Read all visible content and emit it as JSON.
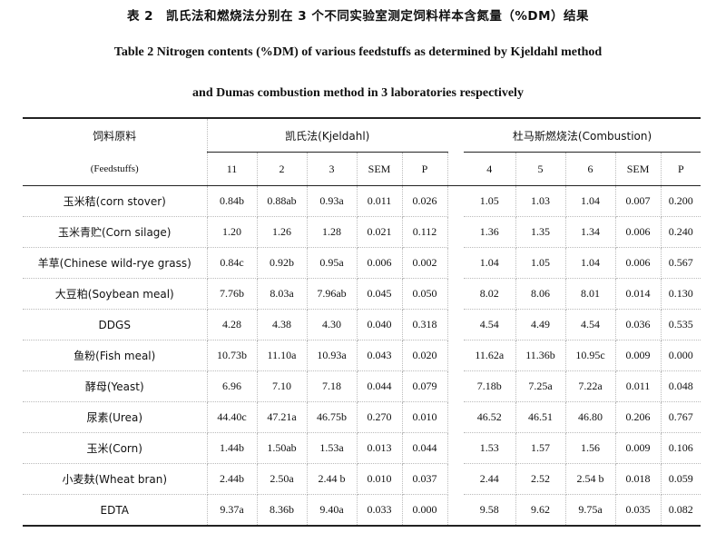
{
  "title_cn": "表 2　凯氏法和燃烧法分别在 3 个不同实验室测定饲料样本含氮量（%DM）结果",
  "title_en_line1": "Table 2 Nitrogen contents (%DM) of various feedstuffs as determined by Kjeldahl method",
  "title_en_line2": "and Dumas combustion method in 3 laboratories respectively",
  "header": {
    "feed_cn": "饲料原料",
    "feed_en": "(Feedstuffs)",
    "kjeldahl_group": "凯氏法(Kjeldahl)",
    "combustion_group": "杜马斯燃烧法(Combustion)",
    "kjeldahl_cols": [
      "11",
      "2",
      "3",
      "SEM",
      "P"
    ],
    "combustion_cols": [
      "4",
      "5",
      "6",
      "SEM",
      "P"
    ]
  },
  "rows": [
    {
      "name": "玉米秸(corn stover)",
      "k": [
        "0.84b",
        "0.88ab",
        "0.93a",
        "0.011",
        "0.026"
      ],
      "c": [
        "1.05",
        "1.03",
        "1.04",
        "0.007",
        "0.200"
      ]
    },
    {
      "name": "玉米青贮(Corn silage)",
      "k": [
        "1.20",
        "1.26",
        "1.28",
        "0.021",
        "0.112"
      ],
      "c": [
        "1.36",
        "1.35",
        "1.34",
        "0.006",
        "0.240"
      ]
    },
    {
      "name": "羊草(Chinese wild-rye grass)",
      "k": [
        "0.84c",
        "0.92b",
        "0.95a",
        "0.006",
        "0.002"
      ],
      "c": [
        "1.04",
        "1.05",
        "1.04",
        "0.006",
        "0.567"
      ]
    },
    {
      "name": "大豆粕(Soybean meal)",
      "k": [
        "7.76b",
        "8.03a",
        "7.96ab",
        "0.045",
        "0.050"
      ],
      "c": [
        "8.02",
        "8.06",
        "8.01",
        "0.014",
        "0.130"
      ]
    },
    {
      "name": "DDGS",
      "k": [
        "4.28",
        "4.38",
        "4.30",
        "0.040",
        "0.318"
      ],
      "c": [
        "4.54",
        "4.49",
        "4.54",
        "0.036",
        "0.535"
      ]
    },
    {
      "name": "鱼粉(Fish meal)",
      "k": [
        "10.73b",
        "11.10a",
        "10.93a",
        "0.043",
        "0.020"
      ],
      "c": [
        "11.62a",
        "11.36b",
        "10.95c",
        "0.009",
        "0.000"
      ]
    },
    {
      "name": "酵母(Yeast)",
      "k": [
        "6.96",
        "7.10",
        "7.18",
        "0.044",
        "0.079"
      ],
      "c": [
        "7.18b",
        "7.25a",
        "7.22a",
        "0.011",
        "0.048"
      ]
    },
    {
      "name": "尿素(Urea)",
      "k": [
        "44.40c",
        "47.21a",
        "46.75b",
        "0.270",
        "0.010"
      ],
      "c": [
        "46.52",
        "46.51",
        "46.80",
        "0.206",
        "0.767"
      ]
    },
    {
      "name": "玉米(Corn)",
      "k": [
        "1.44b",
        "1.50ab",
        "1.53a",
        "0.013",
        "0.044"
      ],
      "c": [
        "1.53",
        "1.57",
        "1.56",
        "0.009",
        "0.106"
      ]
    },
    {
      "name": "小麦麸(Wheat bran)",
      "k": [
        "2.44b",
        "2.50a",
        "2.44 b",
        "0.010",
        "0.037"
      ],
      "c": [
        "2.44",
        "2.52",
        "2.54 b",
        "0.018",
        "0.059"
      ]
    },
    {
      "name": "EDTA",
      "k": [
        "9.37a",
        "8.36b",
        "9.40a",
        "0.033",
        "0.000"
      ],
      "c": [
        "9.58",
        "9.62",
        "9.75a",
        "0.035",
        "0.082"
      ]
    }
  ]
}
